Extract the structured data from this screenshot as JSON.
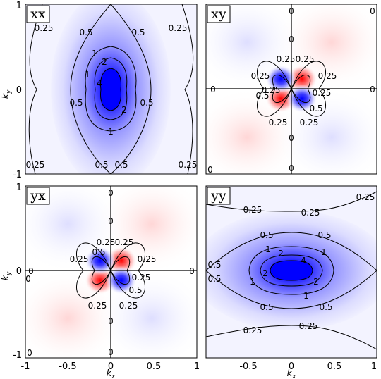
{
  "chart_data": [
    {
      "type": "heatmap",
      "title": "xx",
      "xlim": [
        -1,
        1
      ],
      "ylim": [
        -1,
        1
      ],
      "xticks": [],
      "yticks": [
        "-1",
        "0",
        "1"
      ],
      "ylabel": "k_y",
      "xlabel": "",
      "colormap": {
        "positive": "#ff0000",
        "negative": "#0000ff",
        "zero": "#ffffff"
      },
      "contour_labels": [
        "0.25",
        "0.25",
        "0.5",
        "0.5",
        "1",
        "1",
        "1",
        "2",
        "2",
        "4",
        "0.5",
        "0.5",
        "0.5",
        "0.5",
        "0.25",
        "0.25"
      ]
    },
    {
      "type": "heatmap",
      "title": "xy",
      "xlim": [
        -1,
        1
      ],
      "ylim": [
        -1,
        1
      ],
      "xticks": [],
      "yticks": [],
      "colormap": {
        "positive": "#ff0000",
        "negative": "#0000ff",
        "zero": "#ffffff"
      },
      "contour_labels": [
        "0.25",
        "0.25",
        "0.25",
        "0.25",
        "0.25",
        "0.5",
        "0.5",
        "0.25",
        "0.25",
        "0.25",
        "0",
        "0",
        "0",
        "0",
        "0",
        "0",
        "0",
        "0"
      ]
    },
    {
      "type": "heatmap",
      "title": "yx",
      "xlim": [
        -1,
        1
      ],
      "ylim": [
        -1,
        1
      ],
      "xticks": [
        "-1",
        "-0.5",
        "0",
        "0.5",
        "1"
      ],
      "yticks": [
        "-1",
        "0",
        "1"
      ],
      "xlabel": "k_x",
      "ylabel": "k_y",
      "colormap": {
        "positive": "#ff0000",
        "negative": "#0000ff",
        "zero": "#ffffff"
      },
      "contour_labels": [
        "0.25",
        "0.25",
        "0.25",
        "0.25",
        "0.25",
        "0.5",
        "0.5",
        "0.25",
        "0.25",
        "0",
        "0",
        "0",
        "0",
        "0",
        "0",
        "0",
        "0"
      ]
    },
    {
      "type": "heatmap",
      "title": "yy",
      "xlim": [
        -1,
        1
      ],
      "ylim": [
        -1,
        1
      ],
      "xticks": [
        "-0.5",
        "0",
        "0.5",
        "1"
      ],
      "yticks": [],
      "xlabel": "k_x",
      "colormap": {
        "positive": "#ff0000",
        "negative": "#0000ff",
        "zero": "#ffffff"
      },
      "contour_labels": [
        "0.25",
        "0.25",
        "0.25",
        "0.25",
        "0.25",
        "0.5",
        "0.5",
        "0.5",
        "0.5",
        "0.5",
        "0.5",
        "1",
        "1",
        "1",
        "1",
        "2",
        "2",
        "2",
        "4"
      ]
    }
  ],
  "axis_labels": {
    "kx": "k",
    "kx_sub": "x",
    "ky": "k",
    "ky_sub": "y"
  }
}
